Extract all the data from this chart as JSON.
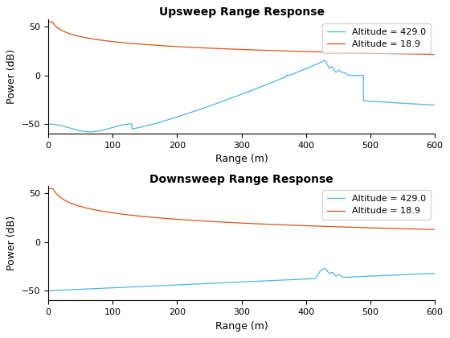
{
  "title1": "Upsweep Range Response",
  "title2": "Downsweep Range Response",
  "xlabel": "Range (m)",
  "ylabel": "Power (dB)",
  "xlim": [
    0,
    600
  ],
  "ylim": [
    -60,
    55
  ],
  "legend1": "Altitude = 429.0",
  "legend2": "Altitude = 18.9",
  "alt1": 429.0,
  "alt2": 18.9,
  "color_blue": "#4db3e6",
  "color_orange": "#d95319",
  "linewidth": 0.9,
  "background": "#ffffff"
}
